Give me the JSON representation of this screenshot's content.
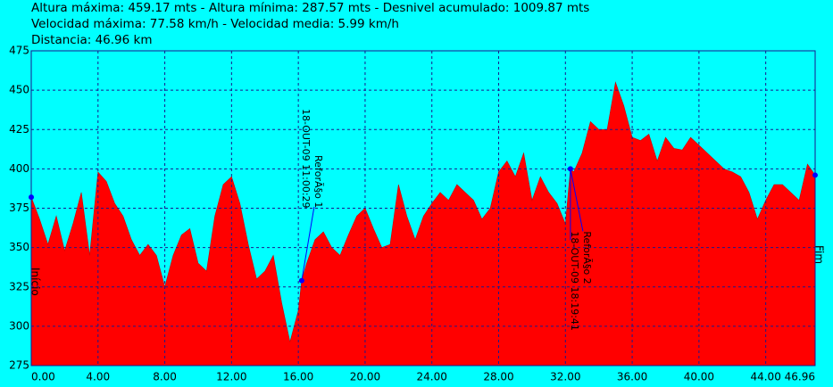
{
  "chart_data": {
    "type": "area",
    "header": [
      "Altura máxima: 459.17 mts - Altura mínima: 287.57 mts - Desnivel acumulado: 1009.87 mts",
      "Velocidad máxima: 77.58 km/h - Velocidad media: 5.99 km/h",
      "Distancia: 46.96 km"
    ],
    "color": "#ff0000",
    "grid": true,
    "xlim": [
      0,
      46.96
    ],
    "ylim": [
      275,
      475
    ],
    "xticks": [
      {
        "value": 0,
        "label": "0.00"
      },
      {
        "value": 4,
        "label": "4.00"
      },
      {
        "value": 8,
        "label": "8.00"
      },
      {
        "value": 12,
        "label": "12.00"
      },
      {
        "value": 16,
        "label": "16.00"
      },
      {
        "value": 20,
        "label": "20.00"
      },
      {
        "value": 24,
        "label": "24.00"
      },
      {
        "value": 28,
        "label": "28.00"
      },
      {
        "value": 32,
        "label": "32.00"
      },
      {
        "value": 36,
        "label": "36.00"
      },
      {
        "value": 40,
        "label": "40.00"
      },
      {
        "value": 44,
        "label": "44.00"
      },
      {
        "value": 46.96,
        "label": "46.96"
      }
    ],
    "yticks": [
      275,
      300,
      325,
      350,
      375,
      400,
      425,
      450,
      475
    ],
    "x": [
      0,
      0.5,
      1,
      1.5,
      2,
      2.5,
      3,
      3.5,
      4,
      4.5,
      5,
      5.5,
      6,
      6.5,
      7,
      7.5,
      8,
      8.5,
      9,
      9.5,
      10,
      10.5,
      11,
      11.5,
      12,
      12.5,
      13,
      13.5,
      14,
      14.5,
      15,
      15.5,
      16,
      16.2,
      16.5,
      17,
      17.5,
      18,
      18.5,
      19,
      19.5,
      20,
      20.5,
      21,
      21.5,
      22,
      22.5,
      23,
      23.5,
      24,
      24.5,
      25,
      25.5,
      26,
      26.5,
      27,
      27.5,
      28,
      28.5,
      29,
      29.5,
      30,
      30.5,
      31,
      31.5,
      32,
      32.3,
      32.5,
      33,
      33.5,
      34,
      34.5,
      35,
      35.5,
      36,
      36.5,
      37,
      37.5,
      38,
      38.5,
      39,
      39.5,
      40,
      40.5,
      41,
      41.5,
      42,
      42.5,
      43,
      43.5,
      44,
      44.5,
      45,
      45.5,
      46,
      46.5,
      46.96
    ],
    "values": [
      382,
      368,
      352,
      370,
      348,
      365,
      385,
      345,
      398,
      392,
      378,
      370,
      355,
      345,
      352,
      345,
      325,
      345,
      358,
      362,
      340,
      335,
      370,
      390,
      395,
      378,
      352,
      330,
      335,
      345,
      315,
      290,
      310,
      329,
      340,
      355,
      360,
      350,
      345,
      358,
      370,
      375,
      362,
      350,
      352,
      390,
      370,
      355,
      370,
      378,
      385,
      380,
      390,
      385,
      380,
      368,
      375,
      398,
      405,
      395,
      410,
      380,
      395,
      385,
      378,
      365,
      400,
      398,
      410,
      430,
      425,
      425,
      455,
      440,
      420,
      418,
      422,
      405,
      420,
      413,
      412,
      420,
      415,
      410,
      405,
      400,
      398,
      395,
      385,
      368,
      380,
      390,
      390,
      385,
      380,
      403,
      396
    ],
    "start_label": "Início",
    "end_label": "Fim",
    "markers": [
      {
        "x": 16.2,
        "y": 329,
        "label": "ReforÃ§o 1",
        "time": "18-OUT-09 11:00:29"
      },
      {
        "x": 32.3,
        "y": 400,
        "label": "ReforÃ§o 2",
        "time": "18-OUT-09 18:19:41"
      }
    ]
  }
}
